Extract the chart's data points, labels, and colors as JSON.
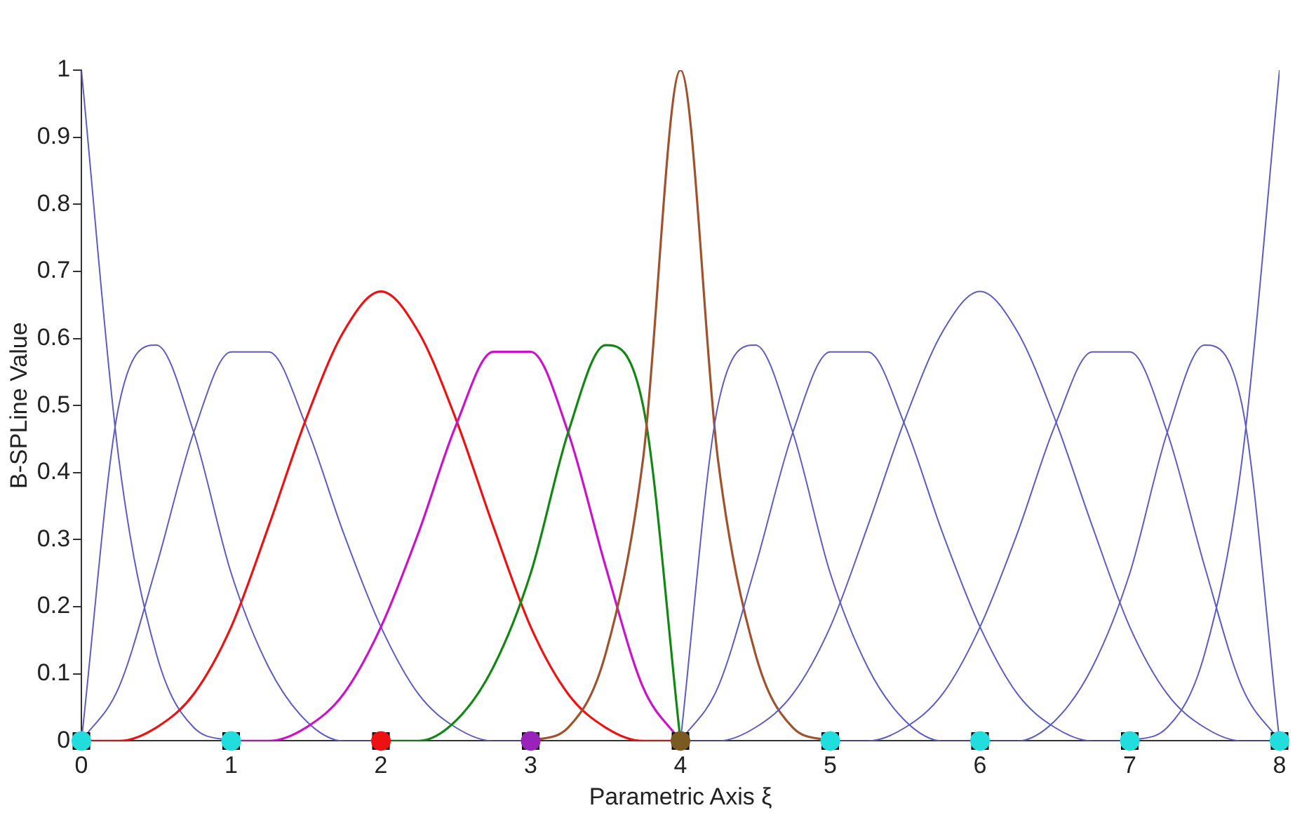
{
  "chart_data": {
    "type": "line",
    "xlabel": "Parametric Axis ξ",
    "ylabel": "B-SPLine Value",
    "xlim": [
      0,
      8
    ],
    "ylim": [
      0,
      1
    ],
    "xticks": [
      0,
      1,
      2,
      3,
      4,
      5,
      6,
      7,
      8
    ],
    "yticks": [
      0,
      0.1,
      0.2,
      0.3,
      0.4,
      0.5,
      0.6,
      0.7,
      0.8,
      0.9,
      1
    ],
    "grid": false,
    "legend": false,
    "marker": "none",
    "line_style": "solid",
    "series": [
      {
        "color": "#5c5cc4",
        "x": [
          0,
          0.25,
          0.5,
          0.75,
          1
        ],
        "values": [
          1,
          0.42,
          0.13,
          0.02,
          0
        ]
      },
      {
        "color": "#5c5cc4",
        "x": [
          0,
          0.25,
          0.5,
          0.75,
          1,
          1.25,
          1.5,
          1.75,
          2
        ],
        "values": [
          0,
          0.5,
          0.59,
          0.46,
          0.25,
          0.11,
          0.03,
          0,
          0
        ]
      },
      {
        "color": "#5c5cc4",
        "x": [
          0,
          0.25,
          0.5,
          0.75,
          1,
          1.25,
          1.5,
          1.75,
          2,
          2.25,
          2.5,
          2.75,
          3
        ],
        "values": [
          0,
          0.08,
          0.26,
          0.46,
          0.58,
          0.58,
          0.47,
          0.31,
          0.17,
          0.07,
          0.02,
          0,
          0
        ]
      },
      {
        "color": "#ee1111",
        "x": [
          0,
          0.25,
          0.5,
          0.75,
          1,
          1.25,
          1.5,
          1.75,
          2,
          2.25,
          2.5,
          2.75,
          3,
          3.25,
          3.5,
          3.75,
          4
        ],
        "values": [
          0,
          0,
          0.02,
          0.07,
          0.17,
          0.32,
          0.48,
          0.61,
          0.67,
          0.61,
          0.48,
          0.32,
          0.17,
          0.07,
          0.02,
          0,
          0
        ]
      },
      {
        "color": "#cc11cc",
        "x": [
          1,
          1.25,
          1.5,
          1.75,
          2,
          2.25,
          2.5,
          2.75,
          3,
          3.25,
          3.5,
          3.75,
          4
        ],
        "values": [
          0,
          0,
          0.02,
          0.07,
          0.17,
          0.31,
          0.47,
          0.58,
          0.58,
          0.46,
          0.26,
          0.08,
          0
        ]
      },
      {
        "color": "#118811",
        "x": [
          2,
          2.25,
          2.5,
          2.75,
          3,
          3.25,
          3.5,
          3.75,
          4
        ],
        "values": [
          0,
          0,
          0.03,
          0.11,
          0.25,
          0.46,
          0.59,
          0.5,
          0
        ]
      },
      {
        "color": "#a0522d",
        "x": [
          3,
          3.25,
          3.5,
          3.75,
          4,
          4.25,
          4.5,
          4.75,
          5
        ],
        "values": [
          0,
          0.02,
          0.13,
          0.42,
          1,
          0.42,
          0.13,
          0.02,
          0
        ]
      },
      {
        "color": "#5c5cc4",
        "x": [
          4,
          4.25,
          4.5,
          4.75,
          5,
          5.25,
          5.5,
          5.75,
          6
        ],
        "values": [
          0,
          0.5,
          0.59,
          0.46,
          0.25,
          0.11,
          0.03,
          0,
          0
        ]
      },
      {
        "color": "#5c5cc4",
        "x": [
          4,
          4.25,
          4.5,
          4.75,
          5,
          5.25,
          5.5,
          5.75,
          6,
          6.25,
          6.5,
          6.75,
          7
        ],
        "values": [
          0,
          0.08,
          0.26,
          0.46,
          0.58,
          0.58,
          0.47,
          0.31,
          0.17,
          0.07,
          0.02,
          0,
          0
        ]
      },
      {
        "color": "#5c5cc4",
        "x": [
          4,
          4.25,
          4.5,
          4.75,
          5,
          5.25,
          5.5,
          5.75,
          6,
          6.25,
          6.5,
          6.75,
          7,
          7.25,
          7.5,
          7.75,
          8
        ],
        "values": [
          0,
          0,
          0.02,
          0.07,
          0.17,
          0.32,
          0.48,
          0.61,
          0.67,
          0.61,
          0.48,
          0.32,
          0.17,
          0.07,
          0.02,
          0,
          0
        ]
      },
      {
        "color": "#5c5cc4",
        "x": [
          5,
          5.25,
          5.5,
          5.75,
          6,
          6.25,
          6.5,
          6.75,
          7,
          7.25,
          7.5,
          7.75,
          8
        ],
        "values": [
          0,
          0,
          0.02,
          0.07,
          0.17,
          0.31,
          0.47,
          0.58,
          0.58,
          0.46,
          0.26,
          0.08,
          0
        ]
      },
      {
        "color": "#5c5cc4",
        "x": [
          6,
          6.25,
          6.5,
          6.75,
          7,
          7.25,
          7.5,
          7.75,
          8
        ],
        "values": [
          0,
          0,
          0.03,
          0.11,
          0.25,
          0.46,
          0.59,
          0.5,
          0
        ]
      },
      {
        "color": "#5c5cc4",
        "x": [
          7,
          7.25,
          7.5,
          7.75,
          8
        ],
        "values": [
          0,
          0.02,
          0.13,
          0.42,
          1
        ]
      },
      {
        "type": "scatter",
        "marker": "square",
        "color": "#d8c860",
        "x": [
          0,
          1,
          2,
          3,
          4,
          5,
          6,
          7,
          8
        ],
        "values": [
          0,
          0,
          0,
          0,
          0,
          0,
          0,
          0,
          0
        ]
      },
      {
        "type": "scatter",
        "marker": "circle",
        "colors": [
          "#22dddd",
          "#22dddd",
          "#ee1111",
          "#9922bb",
          "#7a5a20",
          "#22dddd",
          "#22dddd",
          "#22dddd",
          "#22dddd"
        ],
        "x": [
          0,
          1,
          2,
          3,
          4,
          5,
          6,
          7,
          8
        ],
        "values": [
          0,
          0,
          0,
          0,
          0,
          0,
          0,
          0,
          0
        ]
      }
    ]
  }
}
